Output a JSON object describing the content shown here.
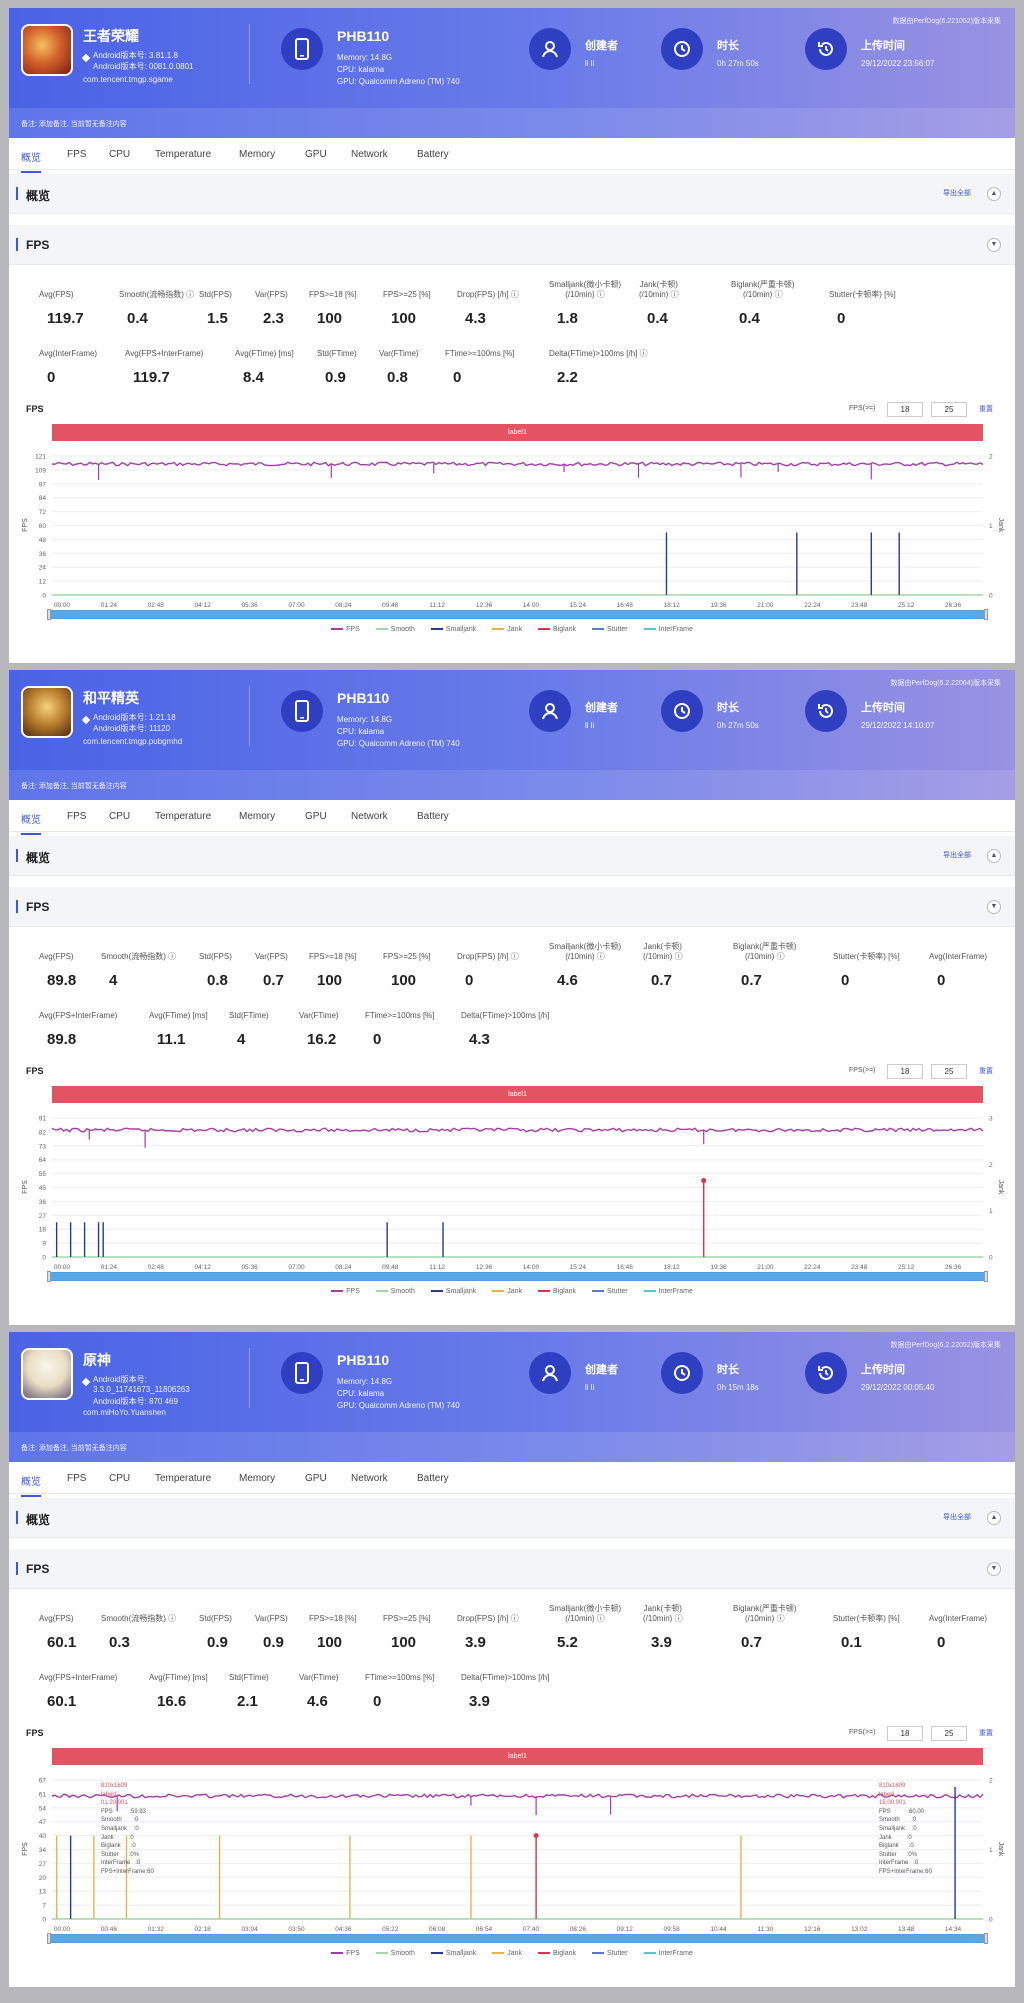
{
  "tabs": [
    "概览",
    "FPS",
    "CPU",
    "Temperature",
    "Memory",
    "GPU",
    "Network",
    "Battery"
  ],
  "overview_title": "概览",
  "export_label": "导出全部",
  "fps_section_title": "FPS",
  "fps_chart_title": "FPS",
  "fps_threshold_label": "FPS(>=)",
  "fps_threshold_values": [
    "18",
    "25"
  ],
  "reset_label": "重置",
  "label_bar": "label1",
  "y_axis_left": "FPS",
  "y_axis_right": "Jank",
  "legend": [
    {
      "name": "FPS",
      "color": "#a23fa7"
    },
    {
      "name": "Smooth",
      "color": "#9fd9a5"
    },
    {
      "name": "Smalljank",
      "color": "#2a3a8c"
    },
    {
      "name": "Jank",
      "color": "#e8b44a"
    },
    {
      "name": "Biglank",
      "color": "#d8344d"
    },
    {
      "name": "Stutter",
      "color": "#5b75c8"
    },
    {
      "name": "InterFrame",
      "color": "#5cc6c8"
    }
  ],
  "device": {
    "name": "PHB110",
    "memory": "Memory: 14.8G",
    "cpu": "CPU: kalama",
    "gpu": "GPU: Qualcomm Adreno (TM) 740"
  },
  "stat_labels": {
    "creator": "创建者",
    "duration": "时长",
    "upload": "上传时间"
  },
  "remark": "备注: 添加备注, 当前暂无备注内容",
  "panels": [
    {
      "app_name": "王者荣耀",
      "app_line1": "Android版本号: 3.81.1.8",
      "app_line2": "Android版本号: 0081.0.0801",
      "app_package": "com.tencent.tmgp.sgame",
      "creator": "li li",
      "duration": "0h 27m 50s",
      "upload_time": "29/12/2022 23:56:07",
      "top_note": "数据由PerfDog(6.221052)版本采集",
      "metrics_row1": [
        {
          "label": "Avg(FPS)",
          "value": "119.7"
        },
        {
          "label": "Smooth(流畅指数) ⓘ",
          "value": "0.4"
        },
        {
          "label": "Std(FPS)",
          "value": "1.5"
        },
        {
          "label": "Var(FPS)",
          "value": "2.3"
        },
        {
          "label": "FPS>=18 [%]",
          "value": "100"
        },
        {
          "label": "FPS>=25 [%]",
          "value": "100"
        },
        {
          "label": "Drop(FPS) [/h] ⓘ",
          "value": "4.3"
        },
        {
          "label": "Smalljank(微小卡顿)\n(/10min) ⓘ",
          "value": "1.8"
        },
        {
          "label": "Jank(卡顿)\n(/10min) ⓘ",
          "value": "0.4"
        },
        {
          "label": "Biglank(严重卡顿)\n(/10min) ⓘ",
          "value": "0.4"
        },
        {
          "label": "Stutter(卡顿率) [%]",
          "value": "0"
        }
      ],
      "metrics_row2": [
        {
          "label": "Avg(InterFrame)",
          "value": "0"
        },
        {
          "label": "Avg(FPS+InterFrame)",
          "value": "119.7"
        },
        {
          "label": "Avg(FTime) [ms]",
          "value": "8.4"
        },
        {
          "label": "Std(FTime)",
          "value": "0.9"
        },
        {
          "label": "Var(FTime)",
          "value": "0.8"
        },
        {
          "label": "FTime>=100ms [%]",
          "value": "0"
        },
        {
          "label": "Delta(FTime)>100ms [/h] ⓘ",
          "value": "2.2"
        }
      ],
      "y_ticks": [
        "0",
        "12",
        "24",
        "36",
        "48",
        "60",
        "72",
        "84",
        "97",
        "109",
        "121"
      ],
      "y2_ticks": [
        "0",
        "1",
        "2"
      ],
      "x_ticks": [
        "00:00",
        "01:24",
        "02:48",
        "04:12",
        "05:36",
        "07:00",
        "08:24",
        "09:48",
        "11:12",
        "12:36",
        "14:00",
        "15:24",
        "16:48",
        "18:12",
        "19:36",
        "21:00",
        "22:24",
        "23:48",
        "25:12",
        "26:36"
      ]
    },
    {
      "app_name": "和平精英",
      "app_line1": "Android版本号: 1.21.18",
      "app_line2": "Android版本号: 11120",
      "app_package": "com.tencent.tmgp.pubgmhd",
      "creator": "li li",
      "duration": "0h 27m 50s",
      "upload_time": "29/12/2022 14:10:07",
      "top_note": "数据由PerfDog(6.2.22064)版本采集",
      "metrics_row1": [
        {
          "label": "Avg(FPS)",
          "value": "89.8"
        },
        {
          "label": "Smooth(流畅指数) ⓘ",
          "value": "4"
        },
        {
          "label": "Std(FPS)",
          "value": "0.8"
        },
        {
          "label": "Var(FPS)",
          "value": "0.7"
        },
        {
          "label": "FPS>=18 [%]",
          "value": "100"
        },
        {
          "label": "FPS>=25 [%]",
          "value": "100"
        },
        {
          "label": "Drop(FPS) [/h] ⓘ",
          "value": "0"
        },
        {
          "label": "Smalljank(微小卡顿)\n(/10min) ⓘ",
          "value": "4.6"
        },
        {
          "label": "Jank(卡顿)\n(/10min) ⓘ",
          "value": "0.7"
        },
        {
          "label": "Biglank(严重卡顿)\n(/10min) ⓘ",
          "value": "0.7"
        },
        {
          "label": "Stutter(卡顿率) [%]",
          "value": "0"
        },
        {
          "label": "Avg(InterFrame)",
          "value": "0"
        }
      ],
      "metrics_row2": [
        {
          "label": "Avg(FPS+InterFrame)",
          "value": "89.8"
        },
        {
          "label": "Avg(FTime) [ms]",
          "value": "11.1"
        },
        {
          "label": "Std(FTime)",
          "value": "4"
        },
        {
          "label": "Var(FTime)",
          "value": "16.2"
        },
        {
          "label": "FTime>=100ms [%]",
          "value": "0"
        },
        {
          "label": "Delta(FTime)>100ms [/h]",
          "value": "4.3"
        }
      ],
      "y_ticks": [
        "0",
        "9",
        "18",
        "27",
        "36",
        "45",
        "55",
        "64",
        "73",
        "82",
        "91"
      ],
      "y2_ticks": [
        "0",
        "1",
        "2",
        "3"
      ],
      "x_ticks": [
        "00:00",
        "01:24",
        "02:48",
        "04:12",
        "05:36",
        "07:00",
        "08:24",
        "09:48",
        "11:12",
        "12:36",
        "14:00",
        "15:24",
        "16:48",
        "18:12",
        "19:36",
        "21:00",
        "22:24",
        "23:48",
        "25:12",
        "26:36"
      ]
    },
    {
      "app_name": "原神",
      "app_line1": "Android版本号:",
      "app_line2": "3.3.0_11741673_11806263",
      "app_line3": "Android版本号: 870 469",
      "app_package": "com.miHoYo.Yuanshen",
      "creator": "li li",
      "duration": "0h 15m 18s",
      "upload_time": "29/12/2022 00:05:40",
      "top_note": "数据由PerfDog(6.2.22052)版本采集",
      "metrics_row1": [
        {
          "label": "Avg(FPS)",
          "value": "60.1"
        },
        {
          "label": "Smooth(流畅指数) ⓘ",
          "value": "0.3"
        },
        {
          "label": "Std(FPS)",
          "value": "0.9"
        },
        {
          "label": "Var(FPS)",
          "value": "0.9"
        },
        {
          "label": "FPS>=18 [%]",
          "value": "100"
        },
        {
          "label": "FPS>=25 [%]",
          "value": "100"
        },
        {
          "label": "Drop(FPS) [/h] ⓘ",
          "value": "3.9"
        },
        {
          "label": "Smalljank(微小卡顿)\n(/10min) ⓘ",
          "value": "5.2"
        },
        {
          "label": "Jank(卡顿)\n(/10min) ⓘ",
          "value": "3.9"
        },
        {
          "label": "Biglank(严重卡顿)\n(/10min) ⓘ",
          "value": "0.7"
        },
        {
          "label": "Stutter(卡顿率) [%]",
          "value": "0.1"
        },
        {
          "label": "Avg(InterFrame)",
          "value": "0"
        }
      ],
      "metrics_row2": [
        {
          "label": "Avg(FPS+InterFrame)",
          "value": "60.1"
        },
        {
          "label": "Avg(FTime) [ms]",
          "value": "16.6"
        },
        {
          "label": "Std(FTime)",
          "value": "2.1"
        },
        {
          "label": "Var(FTime)",
          "value": "4.6"
        },
        {
          "label": "FTime>=100ms [%]",
          "value": "0"
        },
        {
          "label": "Delta(FTime)>100ms [/h]",
          "value": "3.9"
        }
      ],
      "y_ticks": [
        "0",
        "7",
        "13",
        "20",
        "27",
        "34",
        "40",
        "47",
        "54",
        "61",
        "67"
      ],
      "y2_ticks": [
        "0",
        "1",
        "2"
      ],
      "x_ticks": [
        "00:00",
        "00:46",
        "01:32",
        "02:18",
        "03:04",
        "03:50",
        "04:36",
        "05:22",
        "06:08",
        "06:54",
        "07:40",
        "08:26",
        "09:12",
        "09:58",
        "10:44",
        "11:30",
        "12:16",
        "13:02",
        "13:48",
        "14:34"
      ],
      "tooltips": [
        {
          "lines": [
            "810x1609",
            "label1",
            "01:20:001",
            "FPS          :59.93",
            "Smooth       :0",
            "Smalljank    :0",
            "Jank         :0",
            "Biglank      :0",
            "Stutter      :0%",
            "InterFrame   :0",
            "FPS+InterFrame:60"
          ]
        },
        {
          "lines": [
            "810x1609",
            "label1",
            "15:00:001",
            "FPS          :60.00",
            "Smooth       :0",
            "Smalljank    :0",
            "Jank         :0",
            "Biglank      :0",
            "Stutter      :0%",
            "InterFrame   :0",
            "FPS+InterFrame:60"
          ]
        }
      ]
    }
  ]
}
